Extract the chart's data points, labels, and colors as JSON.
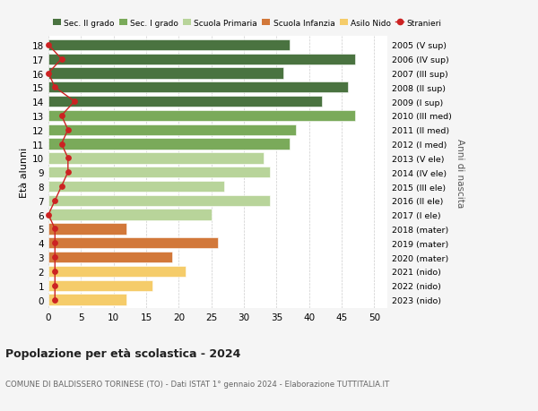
{
  "ages": [
    18,
    17,
    16,
    15,
    14,
    13,
    12,
    11,
    10,
    9,
    8,
    7,
    6,
    5,
    4,
    3,
    2,
    1,
    0
  ],
  "bar_values": [
    37,
    47,
    36,
    46,
    42,
    47,
    38,
    37,
    33,
    34,
    27,
    34,
    25,
    12,
    26,
    19,
    21,
    16,
    12
  ],
  "stranieri_values": [
    0,
    2,
    0,
    1,
    4,
    2,
    3,
    2,
    3,
    3,
    2,
    1,
    0,
    1,
    1,
    1,
    1,
    1,
    1
  ],
  "right_labels": [
    "2005 (V sup)",
    "2006 (IV sup)",
    "2007 (III sup)",
    "2008 (II sup)",
    "2009 (I sup)",
    "2010 (III med)",
    "2011 (II med)",
    "2012 (I med)",
    "2013 (V ele)",
    "2014 (IV ele)",
    "2015 (III ele)",
    "2016 (II ele)",
    "2017 (I ele)",
    "2018 (mater)",
    "2019 (mater)",
    "2020 (mater)",
    "2021 (nido)",
    "2022 (nido)",
    "2023 (nido)"
  ],
  "bar_colors": [
    "#4a7340",
    "#4a7340",
    "#4a7340",
    "#4a7340",
    "#4a7340",
    "#7aaa5a",
    "#7aaa5a",
    "#7aaa5a",
    "#b8d49a",
    "#b8d49a",
    "#b8d49a",
    "#b8d49a",
    "#b8d49a",
    "#d2783a",
    "#d2783a",
    "#d2783a",
    "#f5cc6a",
    "#f5cc6a",
    "#f5cc6a"
  ],
  "legend_colors": [
    "#4a7340",
    "#7aaa5a",
    "#b8d49a",
    "#d2783a",
    "#f5cc6a",
    "#cc2222"
  ],
  "legend_labels": [
    "Sec. II grado",
    "Sec. I grado",
    "Scuola Primaria",
    "Scuola Infanzia",
    "Asilo Nido",
    "Stranieri"
  ],
  "stranieri_color": "#cc2222",
  "title_main": "Popolazione per età scolastica - 2024",
  "title_sub": "COMUNE DI BALDISSERO TORINESE (TO) - Dati ISTAT 1° gennaio 2024 - Elaborazione TUTTITALIA.IT",
  "ylabel": "Età alunni",
  "right_ylabel": "Anni di nascita",
  "xlim": [
    0,
    52
  ],
  "xticks": [
    0,
    5,
    10,
    15,
    20,
    25,
    30,
    35,
    40,
    45,
    50
  ],
  "bg_color": "#f5f5f5",
  "plot_bg_color": "#ffffff"
}
